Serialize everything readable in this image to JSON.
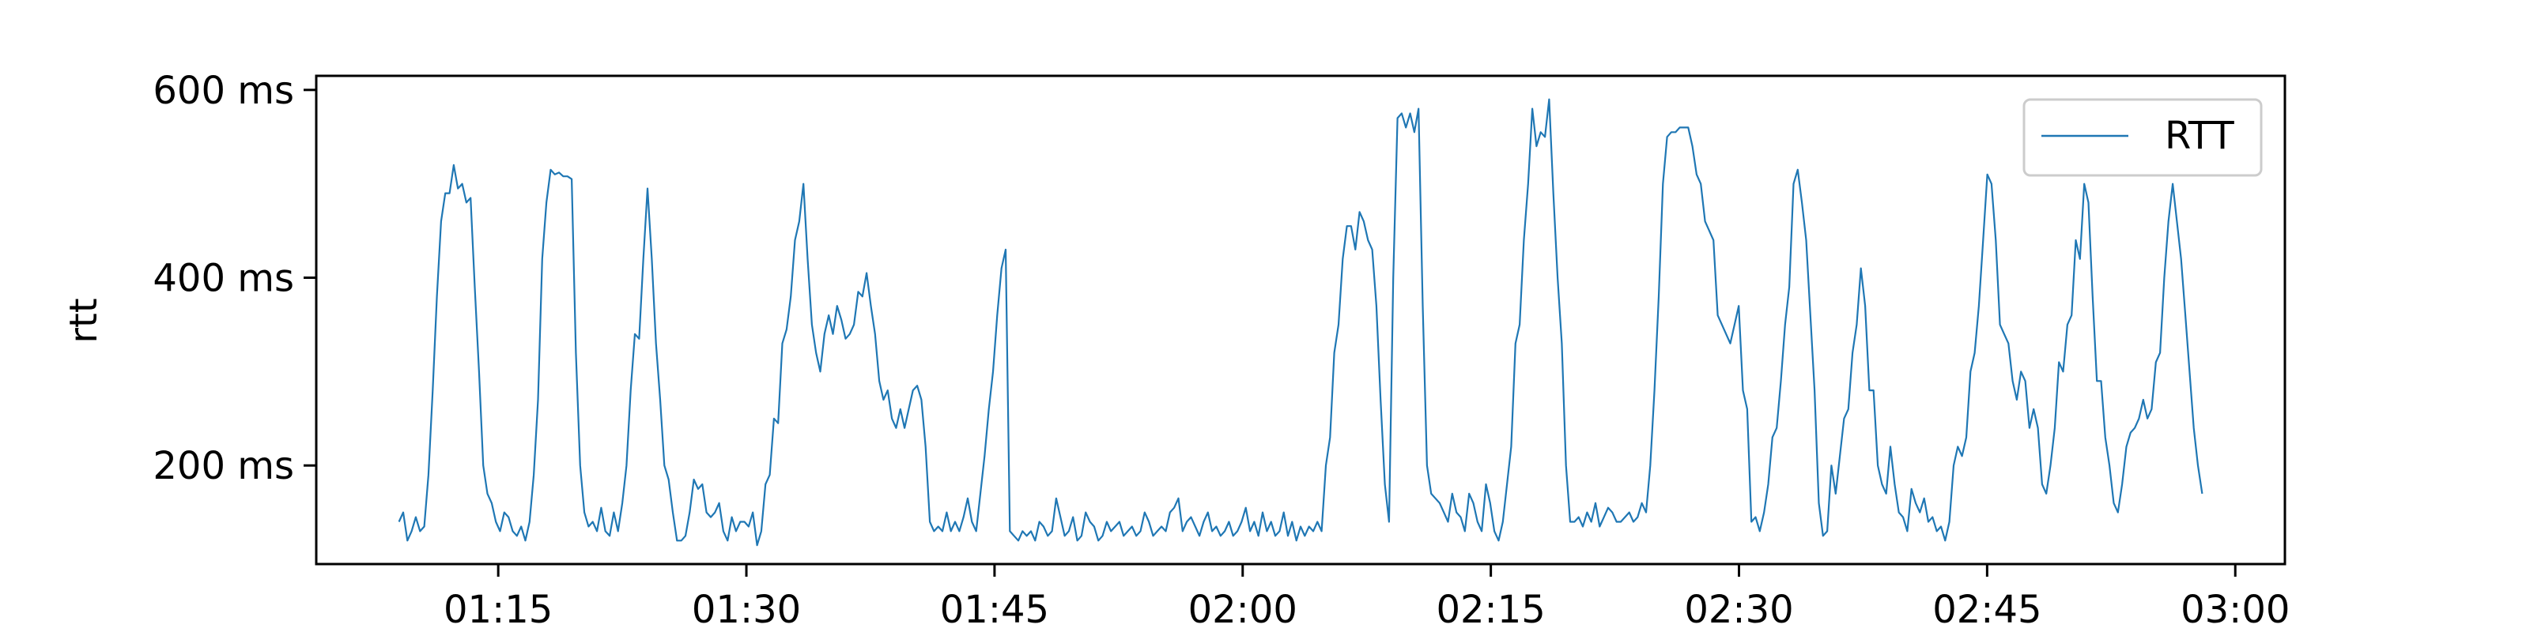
{
  "chart_data": {
    "type": "line",
    "title": "",
    "xlabel": "",
    "ylabel": "rtt",
    "x_unit": "time (HH:MM)",
    "xlim": [
      "01:04",
      "03:03"
    ],
    "ylim": [
      95,
      615
    ],
    "x_ticks": [
      "01:15",
      "01:30",
      "01:45",
      "02:00",
      "02:15",
      "02:30",
      "02:45",
      "03:00"
    ],
    "y_ticks": [
      {
        "value": 200,
        "label": "200 ms"
      },
      {
        "value": 400,
        "label": "400 ms"
      },
      {
        "value": 600,
        "label": "600 ms"
      }
    ],
    "grid": false,
    "legend": {
      "position": "top-right",
      "entries": [
        "RTT"
      ]
    },
    "colors": {
      "series": "#1f77b4",
      "frame": "#000000"
    },
    "series": [
      {
        "name": "RTT",
        "x_start": "01:09",
        "x_end": "02:58",
        "values": [
          140,
          150,
          120,
          130,
          145,
          130,
          135,
          190,
          280,
          380,
          460,
          490,
          490,
          520,
          495,
          500,
          480,
          485,
          390,
          300,
          200,
          170,
          160,
          140,
          130,
          150,
          145,
          130,
          125,
          135,
          120,
          140,
          190,
          270,
          420,
          480,
          515,
          510,
          512,
          508,
          508,
          505,
          320,
          200,
          150,
          135,
          140,
          130,
          155,
          130,
          125,
          150,
          130,
          160,
          200,
          280,
          340,
          335,
          420,
          495,
          420,
          330,
          270,
          200,
          185,
          150,
          120,
          120,
          125,
          150,
          185,
          175,
          180,
          150,
          145,
          150,
          160,
          130,
          120,
          145,
          130,
          140,
          140,
          135,
          150,
          115,
          130,
          180,
          190,
          250,
          245,
          330,
          345,
          380,
          440,
          460,
          500,
          420,
          350,
          320,
          300,
          340,
          360,
          340,
          370,
          355,
          335,
          340,
          350,
          385,
          380,
          405,
          370,
          340,
          290,
          270,
          280,
          250,
          240,
          260,
          240,
          260,
          280,
          285,
          270,
          220,
          140,
          130,
          135,
          130,
          150,
          130,
          140,
          130,
          145,
          165,
          140,
          130,
          170,
          210,
          260,
          300,
          360,
          410,
          430,
          130,
          125,
          120,
          130,
          125,
          130,
          120,
          140,
          135,
          125,
          130,
          165,
          145,
          125,
          130,
          145,
          120,
          125,
          150,
          140,
          135,
          120,
          125,
          140,
          130,
          135,
          140,
          125,
          130,
          135,
          125,
          130,
          150,
          140,
          125,
          130,
          135,
          130,
          150,
          155,
          165,
          130,
          140,
          145,
          135,
          125,
          140,
          150,
          130,
          135,
          125,
          130,
          140,
          125,
          130,
          140,
          155,
          130,
          140,
          125,
          150,
          130,
          140,
          125,
          130,
          150,
          125,
          140,
          120,
          135,
          125,
          135,
          130,
          140,
          130,
          200,
          230,
          320,
          350,
          420,
          455,
          455,
          430,
          470,
          460,
          440,
          430,
          370,
          270,
          180,
          140,
          400,
          570,
          575,
          560,
          575,
          555,
          580,
          370,
          200,
          170,
          165,
          160,
          150,
          140,
          170,
          150,
          145,
          130,
          170,
          160,
          140,
          130,
          180,
          160,
          130,
          120,
          140,
          180,
          220,
          330,
          350,
          440,
          500,
          580,
          540,
          555,
          550,
          590,
          490,
          400,
          330,
          200,
          140,
          140,
          145,
          135,
          150,
          140,
          160,
          135,
          145,
          155,
          150,
          140,
          140,
          145,
          150,
          140,
          145,
          160,
          150,
          200,
          280,
          380,
          500,
          550,
          555,
          555,
          560,
          560,
          560,
          540,
          510,
          500,
          460,
          450,
          440,
          360,
          350,
          340,
          330,
          350,
          370,
          280,
          260,
          140,
          145,
          130,
          150,
          180,
          230,
          240,
          290,
          350,
          390,
          500,
          515,
          480,
          440,
          360,
          280,
          160,
          125,
          130,
          200,
          170,
          210,
          250,
          260,
          320,
          350,
          410,
          370,
          280,
          280,
          200,
          180,
          170,
          220,
          180,
          150,
          145,
          130,
          175,
          160,
          150,
          165,
          140,
          145,
          130,
          135,
          120,
          140,
          200,
          220,
          210,
          230,
          300,
          320,
          370,
          440,
          510,
          500,
          440,
          350,
          340,
          330,
          290,
          270,
          300,
          290,
          240,
          260,
          240,
          180,
          170,
          200,
          240,
          310,
          300,
          350,
          360,
          440,
          420,
          500,
          480,
          380,
          290,
          290,
          230,
          200,
          160,
          150,
          180,
          220,
          235,
          240,
          250,
          270,
          250,
          260,
          310,
          320,
          400,
          460,
          500,
          460,
          420,
          360,
          300,
          240,
          200,
          170
        ]
      }
    ]
  }
}
